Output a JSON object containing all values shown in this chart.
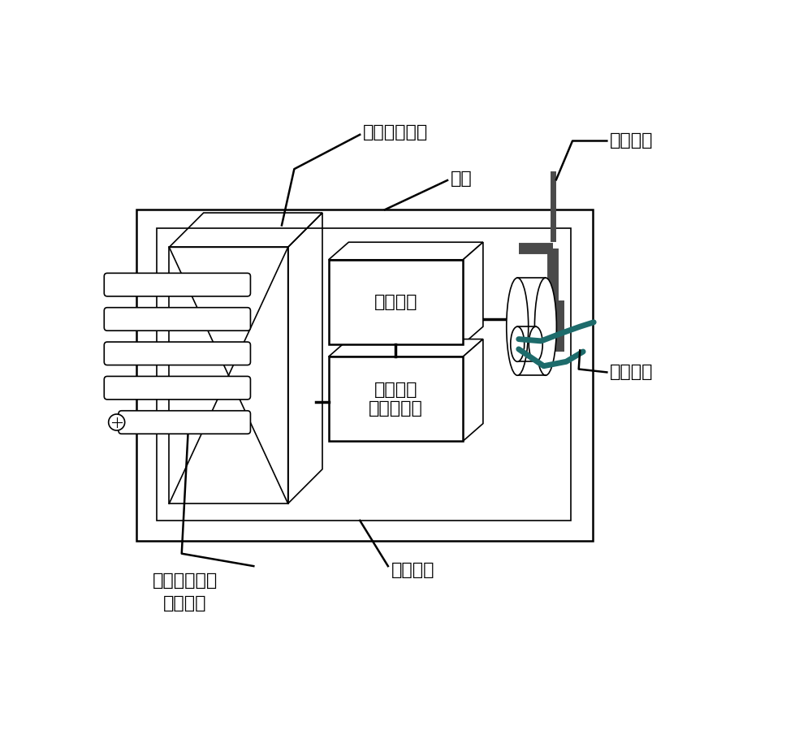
{
  "bg_color": "#ffffff",
  "line_color": "#000000",
  "gray_color": "#4a4a4a",
  "teal_color": "#1d6b6b",
  "labels": {
    "preprocessing_board": "预处理电路板",
    "housing": "外壳",
    "wireless": "无线通讯",
    "wired": "有线通讯",
    "signal_port": "信号传输端口",
    "female_head": "（母头）",
    "tungsten": "钨屏蔽层",
    "comm_module": "通讯模块",
    "dsp_module": "数字信号\n预处理模块"
  }
}
